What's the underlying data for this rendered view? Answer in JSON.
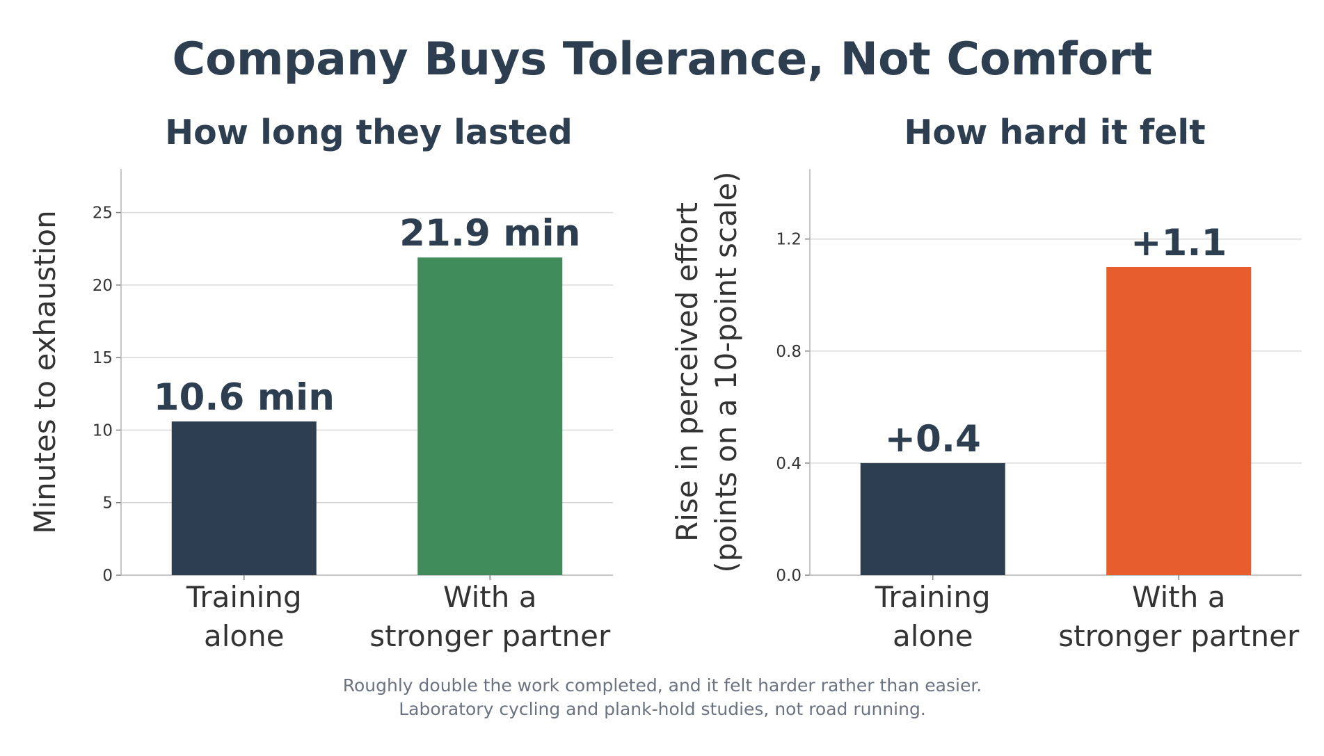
{
  "title": "Company Buys Tolerance, Not Comfort",
  "footnote": [
    "Roughly double the work completed, and it felt harder rather than easier.",
    "Laboratory cycling and plank-hold studies, not road running."
  ],
  "chart_data": [
    {
      "type": "bar",
      "title": "How long they lasted",
      "categories": [
        [
          "Training",
          "alone"
        ],
        [
          "With a",
          "stronger partner"
        ]
      ],
      "values": [
        10.6,
        21.9
      ],
      "data_labels": [
        "10.6 min",
        "21.9 min"
      ],
      "colors": [
        "#2c3e50",
        "#408c5a"
      ],
      "ylabel": [
        "Minutes to exhaustion"
      ],
      "ylim": [
        0,
        28
      ],
      "yticks": [
        0,
        5,
        10,
        15,
        20,
        25
      ],
      "ytick_labels": [
        "0",
        "5",
        "10",
        "15",
        "20",
        "25"
      ],
      "grid": true
    },
    {
      "type": "bar",
      "title": "How hard it felt",
      "categories": [
        [
          "Training",
          "alone"
        ],
        [
          "With a",
          "stronger partner"
        ]
      ],
      "values": [
        0.4,
        1.1
      ],
      "data_labels": [
        "+0.4",
        "+1.1"
      ],
      "colors": [
        "#2c3e50",
        "#e85d2c"
      ],
      "ylabel": [
        "Rise in perceived effort",
        "(points on a 10-point scale)"
      ],
      "ylim": [
        0,
        1.45
      ],
      "yticks": [
        0,
        0.4,
        0.8,
        1.2
      ],
      "ytick_labels": [
        "0.0",
        "0.4",
        "0.8",
        "1.2"
      ],
      "grid": true
    }
  ]
}
